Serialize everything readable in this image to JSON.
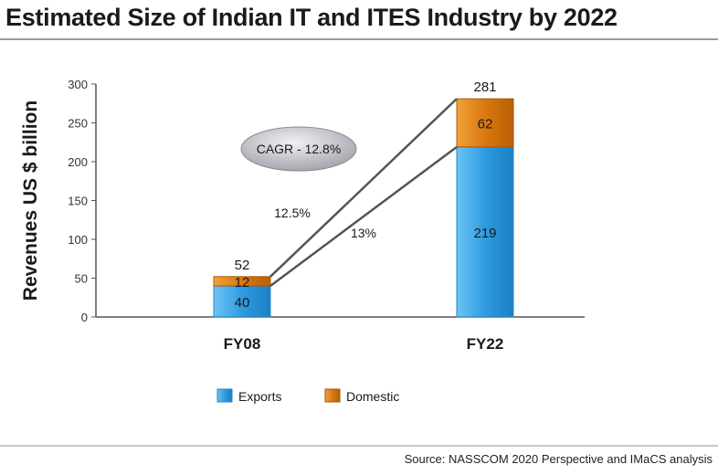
{
  "chart_data": {
    "type": "bar",
    "stacked": true,
    "title": "Estimated Size of Indian IT and ITES Industry by 2022",
    "ylabel": "Revenues US $ billion",
    "xlabel": "",
    "ylim": [
      0,
      300
    ],
    "yticks": [
      0,
      50,
      100,
      150,
      200,
      250,
      300
    ],
    "categories": [
      "FY08",
      "FY22"
    ],
    "series": [
      {
        "name": "Exports",
        "values": [
          40,
          219
        ],
        "color": "#2f9be0"
      },
      {
        "name": "Domestic",
        "values": [
          12,
          62
        ],
        "color": "#d9780e"
      }
    ],
    "totals": [
      "52",
      "281"
    ],
    "growth_labels": {
      "domestic": "12.5%",
      "exports": "13%"
    },
    "cagr_label": "CAGR - 12.8%",
    "legend_position": "bottom",
    "grid": false
  },
  "source": "Source: NASSCOM 2020 Perspective and IMaCS analysis"
}
